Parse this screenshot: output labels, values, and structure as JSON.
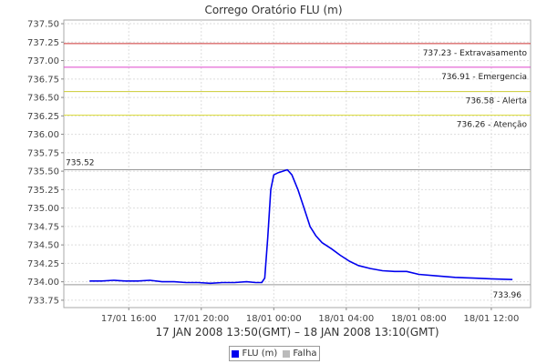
{
  "chart_data": {
    "type": "line",
    "title": "Corrego Oratório FLU (m)",
    "xlabel": "17 JAN 2008 13:50(GMT) – 18 JAN 2008 13:10(GMT)",
    "ylabel": "",
    "ylim": [
      733.65,
      737.55
    ],
    "xlim": [
      "2008-01-17T12:25",
      "2008-01-18T14:10"
    ],
    "grid": true,
    "legend_position": "bottom",
    "y_ticks": [
      "733.75",
      "734.00",
      "734.25",
      "734.50",
      "734.75",
      "735.00",
      "735.25",
      "735.50",
      "735.75",
      "736.00",
      "736.25",
      "736.50",
      "736.75",
      "737.00",
      "737.25",
      "737.50"
    ],
    "x_ticks": [
      {
        "t": "2008-01-17T16:00",
        "label": "17/01 16:00"
      },
      {
        "t": "2008-01-17T20:00",
        "label": "17/01 20:00"
      },
      {
        "t": "2008-01-18T00:00",
        "label": "18/01 00:00"
      },
      {
        "t": "2008-01-18T04:00",
        "label": "18/01 04:00"
      },
      {
        "t": "2008-01-18T08:00",
        "label": "18/01 08:00"
      },
      {
        "t": "2008-01-18T12:00",
        "label": "18/01 12:00"
      }
    ],
    "thresholds": [
      {
        "value": 737.23,
        "label": "737.23 - Extravasamento",
        "color": "#cc3333"
      },
      {
        "value": 736.91,
        "label": "736.91 - Emergencia",
        "color": "#dd44cc"
      },
      {
        "value": 736.58,
        "label": "736.58 - Alerta",
        "color": "#cccc33"
      },
      {
        "value": 736.26,
        "label": "736.26 - Atenção",
        "color": "#dddd44"
      }
    ],
    "markers": [
      {
        "value": 735.52,
        "label": "735.52",
        "color": "#999999",
        "label_side": "left"
      },
      {
        "value": 733.96,
        "label": "733.96",
        "color": "#999999",
        "label_side": "right"
      }
    ],
    "series": [
      {
        "name": "FLU (m)",
        "color": "#0000ee",
        "points": [
          [
            "2008-01-17T13:50",
            734.01
          ],
          [
            "2008-01-17T14:30",
            734.01
          ],
          [
            "2008-01-17T15:10",
            734.02
          ],
          [
            "2008-01-17T15:50",
            734.01
          ],
          [
            "2008-01-17T16:30",
            734.01
          ],
          [
            "2008-01-17T17:10",
            734.02
          ],
          [
            "2008-01-17T17:50",
            734.0
          ],
          [
            "2008-01-17T18:30",
            734.0
          ],
          [
            "2008-01-17T19:10",
            733.99
          ],
          [
            "2008-01-17T19:50",
            733.99
          ],
          [
            "2008-01-17T20:30",
            733.98
          ],
          [
            "2008-01-17T21:10",
            733.99
          ],
          [
            "2008-01-17T21:50",
            733.99
          ],
          [
            "2008-01-17T22:30",
            734.0
          ],
          [
            "2008-01-17T23:00",
            733.99
          ],
          [
            "2008-01-17T23:20",
            733.99
          ],
          [
            "2008-01-17T23:30",
            734.05
          ],
          [
            "2008-01-17T23:40",
            734.6
          ],
          [
            "2008-01-17T23:50",
            735.25
          ],
          [
            "2008-01-18T00:00",
            735.45
          ],
          [
            "2008-01-18T00:15",
            735.48
          ],
          [
            "2008-01-18T00:30",
            735.5
          ],
          [
            "2008-01-18T00:45",
            735.52
          ],
          [
            "2008-01-18T01:00",
            735.45
          ],
          [
            "2008-01-18T01:20",
            735.25
          ],
          [
            "2008-01-18T01:40",
            735.0
          ],
          [
            "2008-01-18T02:00",
            734.75
          ],
          [
            "2008-01-18T02:20",
            734.62
          ],
          [
            "2008-01-18T02:40",
            734.53
          ],
          [
            "2008-01-18T03:10",
            734.45
          ],
          [
            "2008-01-18T03:40",
            734.36
          ],
          [
            "2008-01-18T04:10",
            734.28
          ],
          [
            "2008-01-18T04:40",
            734.22
          ],
          [
            "2008-01-18T05:20",
            734.18
          ],
          [
            "2008-01-18T06:00",
            734.15
          ],
          [
            "2008-01-18T06:40",
            734.14
          ],
          [
            "2008-01-18T07:20",
            734.14
          ],
          [
            "2008-01-18T08:00",
            734.1
          ],
          [
            "2008-01-18T09:00",
            734.08
          ],
          [
            "2008-01-18T10:00",
            734.06
          ],
          [
            "2008-01-18T11:00",
            734.05
          ],
          [
            "2008-01-18T12:00",
            734.04
          ],
          [
            "2008-01-18T13:10",
            734.03
          ]
        ]
      },
      {
        "name": "Falha",
        "color": "#bbbbbb",
        "points": []
      }
    ]
  }
}
